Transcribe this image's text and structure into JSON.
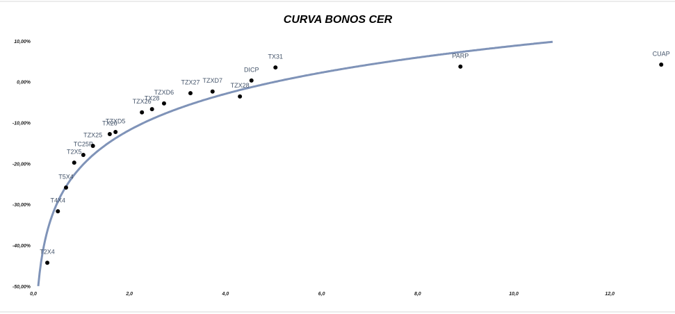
{
  "chart_data": {
    "type": "scatter",
    "title": "CURVA BONOS CER",
    "x": [
      0.29,
      0.51,
      0.68,
      0.85,
      1.04,
      1.24,
      1.59,
      1.71,
      2.26,
      2.47,
      2.72,
      3.27,
      3.73,
      4.3,
      4.54,
      5.04,
      8.89,
      13.07
    ],
    "values": [
      -44.1,
      -31.5,
      -25.7,
      -19.6,
      -17.7,
      -15.5,
      -12.6,
      -12.1,
      -7.3,
      -6.5,
      -5.1,
      -2.6,
      -2.2,
      -3.4,
      0.5,
      3.7,
      3.9,
      4.4
    ],
    "labels": [
      "T2X4",
      "T4X4",
      "T5X4",
      "T2X5",
      "TC25P",
      "TZX25",
      "TX26",
      "TZXD5",
      "TZX26",
      "TX28",
      "TZXD6",
      "TZX27",
      "TZXD7",
      "TZX28",
      "DICP",
      "TX31",
      "PARP",
      "CUAP"
    ],
    "color": "#000000",
    "trendline": {
      "type": "log",
      "a": -20.5,
      "b": 12.8,
      "color": "#7f93b8"
    },
    "xlim": [
      0,
      13.27
    ],
    "ylim": [
      -50,
      10
    ],
    "xticks": [
      {
        "value": 0,
        "label": "0,0"
      },
      {
        "value": 2,
        "label": "2,0"
      },
      {
        "value": 4,
        "label": "4,0"
      },
      {
        "value": 6,
        "label": "6,0"
      },
      {
        "value": 8,
        "label": "8,0"
      },
      {
        "value": 10,
        "label": "10,0"
      },
      {
        "value": 12,
        "label": "12,0"
      }
    ],
    "yticks": [
      {
        "value": 10,
        "label": "10,00%"
      },
      {
        "value": 0,
        "label": "0,00%"
      },
      {
        "value": -10,
        "label": "-10,00%"
      },
      {
        "value": -20,
        "label": "-20,00%"
      },
      {
        "value": -30,
        "label": "-30,00%"
      },
      {
        "value": -40,
        "label": "-40,00%"
      },
      {
        "value": -50,
        "label": "-50,00%"
      }
    ]
  }
}
